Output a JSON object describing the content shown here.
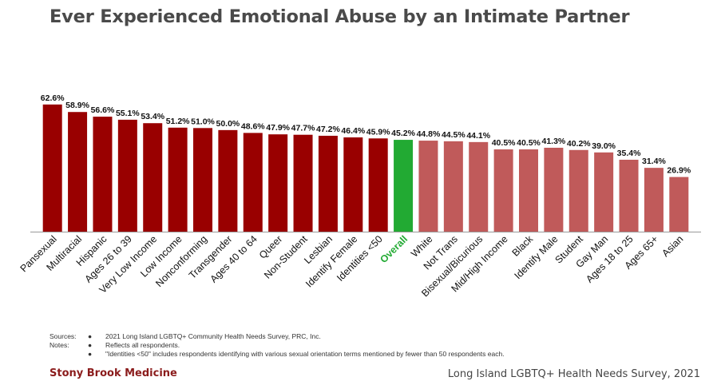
{
  "chart_data": {
    "type": "bar",
    "title": "Ever Experienced Emotional Abuse by an Intimate Partner",
    "categories": [
      "Pansexual",
      "Multiracial",
      "Hispanic",
      "Ages 26 to 39",
      "Very Low Income",
      "Low Income",
      "Nonconforming",
      "Transgender",
      "Ages 40 to 64",
      "Queer",
      "Non-Student",
      "Lesbian",
      "Identify Female",
      "Identities <50",
      "Overall",
      "White",
      "Not Trans",
      "Bisexual/Bicurious",
      "Mid/High Income",
      "Black",
      "Identify Male",
      "Student",
      "Gay Man",
      "Ages 18 to 25",
      "Ages 65+",
      "Asian"
    ],
    "values": [
      62.6,
      58.9,
      56.6,
      55.1,
      53.4,
      51.2,
      51.0,
      50.0,
      48.6,
      47.9,
      47.7,
      47.2,
      46.4,
      45.9,
      45.2,
      44.8,
      44.5,
      44.1,
      40.5,
      40.5,
      41.3,
      40.2,
      39.0,
      35.4,
      31.4,
      26.9
    ],
    "value_labels": [
      "62.6%",
      "58.9%",
      "56.6%",
      "55.1%",
      "53.4%",
      "51.2%",
      "51.0%",
      "50.0%",
      "48.6%",
      "47.9%",
      "47.7%",
      "47.2%",
      "46.4%",
      "45.9%",
      "45.2%",
      "44.8%",
      "44.5%",
      "44.1%",
      "40.5%",
      "40.5%",
      "41.3%",
      "40.2%",
      "39.0%",
      "35.4%",
      "31.4%",
      "26.9%"
    ],
    "ylim": [
      0,
      70
    ],
    "grid": false,
    "colors": {
      "above": "#990000",
      "overall": "#22aa33",
      "below": "#c05a5a",
      "overall_label": "#22aa33"
    },
    "highlight_index": 14
  },
  "notes": [
    {
      "label": "Sources:",
      "bullet": "●",
      "text": "2021 Long Island LGBTQ+ Community Health Needs Survey, PRC, Inc."
    },
    {
      "label": "Notes:",
      "bullet": "●",
      "text": "Reflects all respondents."
    },
    {
      "label": "",
      "bullet": "●",
      "text": "\"Identities <50\" includes respondents identifying with various sexual orientation terms mentioned by fewer than 50 respondents each."
    }
  ],
  "footer": {
    "left": "Stony Brook Medicine",
    "right": "Long Island LGBTQ+ Health Needs Survey, 2021"
  }
}
